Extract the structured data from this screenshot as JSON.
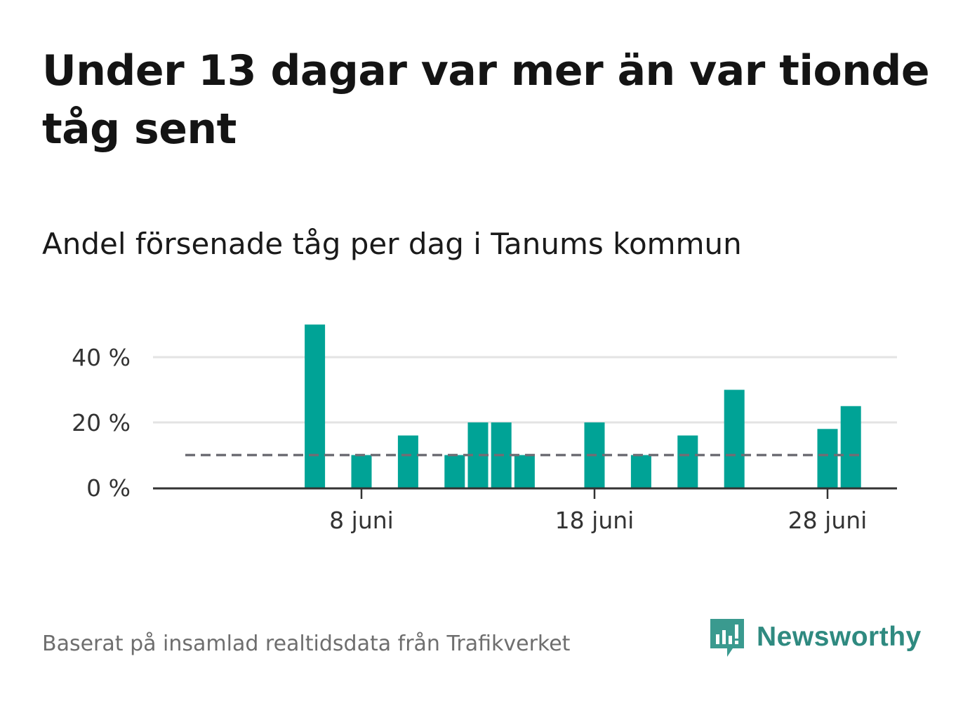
{
  "title": "Under 13 dagar var mer än var tionde tåg sent",
  "subtitle": "Andel försenade tåg per dag i Tanums kommun",
  "footer": "Baserat på insamlad realtidsdata från Trafikverket",
  "brand": "Newsworthy",
  "colors": {
    "bar": "#00a396",
    "reference": "#6e6e75",
    "grid": "#e3e3e3",
    "axis": "#333333",
    "brand": "#2f8a80"
  },
  "chart_data": {
    "type": "bar",
    "title": "Under 13 dagar var mer än var tionde tåg sent",
    "subtitle": "Andel försenade tåg per dag i Tanums kommun",
    "xlabel": "",
    "ylabel": "",
    "x_unit": "juni",
    "x_range": [
      1,
      30
    ],
    "ylim": [
      0,
      50
    ],
    "y_ticks": [
      0,
      20,
      40
    ],
    "y_tick_labels": [
      "0 %",
      "20 %",
      "40 %"
    ],
    "x_ticks": [
      8,
      18,
      28
    ],
    "x_tick_labels": [
      "8 juni",
      "18 juni",
      "28 juni"
    ],
    "grid": true,
    "reference_line": {
      "value": 10,
      "style": "dashed"
    },
    "days": [
      6,
      8,
      10,
      12,
      13,
      14,
      15,
      18,
      20,
      22,
      24,
      28,
      29
    ],
    "values": [
      50,
      10,
      16,
      10,
      20,
      20,
      10,
      20,
      10,
      16,
      30,
      18,
      25
    ]
  }
}
